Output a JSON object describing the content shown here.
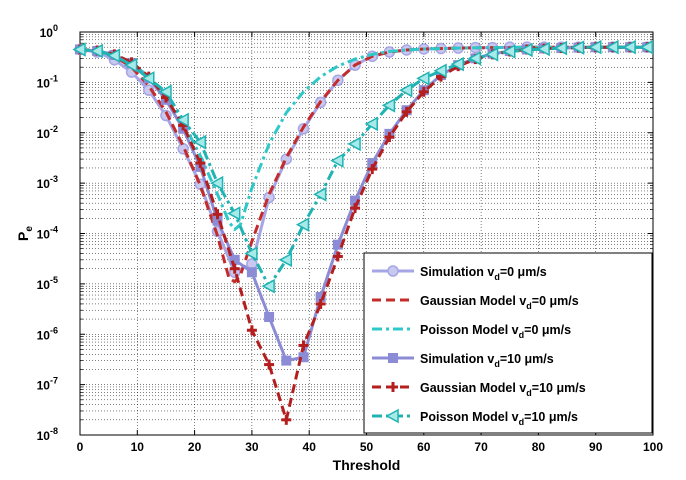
{
  "chart_data": {
    "type": "line",
    "xlabel": "Threshold",
    "ylabel": "P",
    "ylabel_sub": "e",
    "xlim": [
      0,
      100
    ],
    "ylim": [
      1e-08,
      1
    ],
    "yscale": "log",
    "grid": true,
    "legend_position": "lower-right",
    "x_ticks": [
      "0",
      "10",
      "20",
      "30",
      "40",
      "50",
      "60",
      "70",
      "80",
      "90",
      "100"
    ],
    "y_ticks": [
      {
        "base": "10",
        "exp": "0"
      },
      {
        "base": "10",
        "exp": "-1"
      },
      {
        "base": "10",
        "exp": "-2"
      },
      {
        "base": "10",
        "exp": "-3"
      },
      {
        "base": "10",
        "exp": "-4"
      },
      {
        "base": "10",
        "exp": "-5"
      },
      {
        "base": "10",
        "exp": "-6"
      },
      {
        "base": "10",
        "exp": "-7"
      },
      {
        "base": "10",
        "exp": "-8"
      }
    ],
    "series": [
      {
        "label_main": "Simulation v",
        "label_sub": "d",
        "label_rest": "=0 μm/s",
        "color": "#a6a6e6",
        "style": "solid-circle",
        "x": [
          0,
          3,
          6,
          9,
          12,
          15,
          18,
          21,
          24,
          27,
          30,
          33,
          36,
          39,
          42,
          45,
          48,
          51,
          54,
          57,
          60,
          63,
          66,
          69,
          72,
          75,
          78,
          81,
          84,
          87,
          90,
          93,
          96,
          99
        ],
        "y": [
          0.45,
          0.4,
          0.28,
          0.16,
          0.07,
          0.022,
          0.0048,
          0.00095,
          0.00011,
          1.7e-05,
          2.5e-05,
          0.00052,
          0.003,
          0.012,
          0.04,
          0.11,
          0.22,
          0.33,
          0.4,
          0.44,
          0.46,
          0.47,
          0.48,
          0.49,
          0.49,
          0.5,
          0.5,
          0.5,
          0.5,
          0.5,
          0.5,
          0.5,
          0.5,
          0.5
        ]
      },
      {
        "label_main": "Gaussian Model v",
        "label_sub": "d",
        "label_rest": "=0 μm/s",
        "color": "#c42b2b",
        "style": "dash",
        "x": [
          0,
          3,
          6,
          9,
          12,
          15,
          18,
          21,
          24,
          26,
          27,
          28,
          30,
          33,
          36,
          39,
          42,
          45,
          48,
          51,
          54,
          57,
          60,
          66,
          72,
          80,
          90,
          100
        ],
        "y": [
          0.45,
          0.42,
          0.33,
          0.2,
          0.085,
          0.026,
          0.0055,
          0.0009,
          9e-05,
          1.3e-05,
          1.1e-05,
          1.5e-05,
          7e-05,
          0.0006,
          0.0032,
          0.013,
          0.042,
          0.11,
          0.22,
          0.33,
          0.4,
          0.44,
          0.46,
          0.48,
          0.49,
          0.5,
          0.5,
          0.5
        ]
      },
      {
        "label_main": "Poisson Model v",
        "label_sub": "d",
        "label_rest": "=0 μm/s",
        "color": "#2ec8c8",
        "style": "dashdot",
        "x": [
          0,
          3,
          6,
          9,
          12,
          15,
          18,
          21,
          24,
          26,
          27,
          28,
          30,
          33,
          36,
          39,
          42,
          45,
          48,
          51,
          54,
          57,
          60,
          66,
          72,
          80,
          90,
          100
        ],
        "y": [
          0.45,
          0.43,
          0.35,
          0.24,
          0.13,
          0.055,
          0.016,
          0.0035,
          0.0006,
          0.00017,
          0.00012,
          0.00015,
          0.0008,
          0.006,
          0.025,
          0.065,
          0.13,
          0.21,
          0.29,
          0.36,
          0.41,
          0.44,
          0.46,
          0.48,
          0.49,
          0.5,
          0.5,
          0.5
        ]
      },
      {
        "label_main": "Simulation v",
        "label_sub": "d",
        "label_rest": "=10 μm/s",
        "color": "#8c8cd6",
        "style": "solid-square",
        "x": [
          0,
          3,
          6,
          9,
          12,
          15,
          18,
          21,
          24,
          27,
          30,
          33,
          36,
          39,
          42,
          45,
          48,
          51,
          54,
          57,
          60,
          63,
          66,
          69,
          72,
          75,
          78,
          81,
          84,
          87,
          90,
          93,
          96,
          99
        ],
        "y": [
          0.45,
          0.42,
          0.35,
          0.24,
          0.12,
          0.045,
          0.012,
          0.0021,
          0.00018,
          3e-05,
          1.7e-05,
          2.2e-06,
          3e-07,
          3.5e-07,
          5.5e-06,
          6e-05,
          0.00045,
          0.0025,
          0.0095,
          0.028,
          0.07,
          0.14,
          0.22,
          0.3,
          0.37,
          0.42,
          0.45,
          0.47,
          0.48,
          0.49,
          0.5,
          0.5,
          0.5,
          0.5
        ]
      },
      {
        "label_main": "Gaussian Model v",
        "label_sub": "d",
        "label_rest": "=10 μm/s",
        "color": "#b41e1e",
        "style": "dash-plus",
        "x": [
          0,
          3,
          6,
          9,
          12,
          15,
          18,
          21,
          24,
          27,
          30,
          33,
          36,
          39,
          42,
          45,
          48,
          51,
          54,
          57,
          60,
          63,
          66,
          69,
          72,
          75,
          78,
          81,
          84,
          87,
          90,
          93,
          96,
          99
        ],
        "y": [
          0.45,
          0.43,
          0.36,
          0.25,
          0.13,
          0.05,
          0.014,
          0.0025,
          0.00024,
          2e-05,
          1.2e-06,
          2.5e-07,
          2e-08,
          6e-07,
          4e-06,
          3.5e-05,
          0.00032,
          0.0019,
          0.0082,
          0.026,
          0.065,
          0.13,
          0.21,
          0.29,
          0.36,
          0.41,
          0.45,
          0.47,
          0.48,
          0.49,
          0.5,
          0.5,
          0.5,
          0.5
        ]
      },
      {
        "label_main": "Poisson Model v",
        "label_sub": "d",
        "label_rest": "=10 μm/s",
        "color": "#1fb3b3",
        "style": "dashdot-triangle",
        "x": [
          0,
          3,
          6,
          9,
          12,
          15,
          18,
          21,
          24,
          27,
          30,
          33,
          36,
          39,
          42,
          45,
          48,
          51,
          54,
          57,
          60,
          63,
          66,
          69,
          72,
          75,
          78,
          81,
          84,
          87,
          90,
          93,
          96,
          99
        ],
        "y": [
          0.45,
          0.42,
          0.34,
          0.22,
          0.12,
          0.065,
          0.018,
          0.0065,
          0.001,
          0.00025,
          4e-05,
          9e-06,
          3e-05,
          0.00015,
          0.0006,
          0.0028,
          0.006,
          0.015,
          0.035,
          0.07,
          0.12,
          0.17,
          0.23,
          0.3,
          0.36,
          0.41,
          0.44,
          0.46,
          0.48,
          0.49,
          0.5,
          0.5,
          0.5,
          0.5
        ]
      }
    ]
  }
}
